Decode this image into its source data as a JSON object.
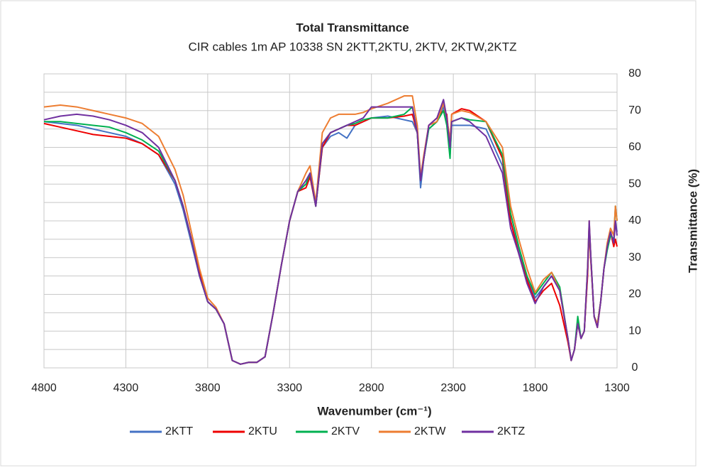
{
  "chart_data": {
    "type": "line",
    "title": "Total Transmittance",
    "subtitle": "CIR cables 1m AP 10338  SN 2KTT,2KTU, 2KTV, 2KTW,2KTZ",
    "xlabel": "Wavenumber  (cm⁻¹)",
    "ylabel": "Transmittance (%)",
    "x": [
      4800,
      4700,
      4600,
      4500,
      4400,
      4300,
      4200,
      4100,
      4000,
      3950,
      3900,
      3850,
      3800,
      3750,
      3700,
      3650,
      3600,
      3550,
      3500,
      3450,
      3400,
      3350,
      3300,
      3250,
      3200,
      3175,
      3140,
      3100,
      3050,
      3000,
      2950,
      2900,
      2850,
      2800,
      2700,
      2600,
      2550,
      2520,
      2500,
      2480,
      2450,
      2400,
      2360,
      2340,
      2320,
      2310,
      2250,
      2200,
      2100,
      2000,
      1950,
      1900,
      1850,
      1800,
      1750,
      1700,
      1650,
      1600,
      1580,
      1560,
      1540,
      1520,
      1500,
      1480,
      1470,
      1460,
      1440,
      1420,
      1400,
      1380,
      1360,
      1340,
      1320,
      1310,
      1300
    ],
    "series": [
      {
        "name": "2KTT",
        "color": "#4472c4",
        "values": [
          67,
          66.5,
          66,
          65,
          64,
          63,
          61,
          58,
          50,
          43,
          34,
          25,
          18,
          16,
          12,
          2,
          1,
          1.5,
          1.5,
          3,
          15,
          28,
          40,
          48,
          50,
          52,
          44,
          60,
          63,
          64,
          62.5,
          66,
          67,
          68,
          68.5,
          67.5,
          67,
          64,
          49,
          57,
          65,
          67,
          71,
          67,
          58,
          66,
          66,
          66,
          65,
          55,
          40,
          32,
          25,
          19,
          22,
          25,
          21,
          8,
          2,
          5,
          13,
          8,
          10,
          26,
          39,
          30,
          14,
          12,
          18,
          27,
          33,
          37,
          34,
          40,
          37
        ]
      },
      {
        "name": "2KTU",
        "color": "#ee0000",
        "values": [
          66.5,
          65.5,
          64.5,
          63.5,
          63,
          62.5,
          61,
          58,
          51,
          44,
          35,
          26,
          18,
          16,
          12,
          2,
          1,
          1.5,
          1.5,
          3,
          15,
          28,
          40,
          48,
          49,
          52,
          44,
          60,
          64,
          65,
          66,
          66,
          67,
          68,
          68,
          68.5,
          69,
          64,
          51,
          57,
          66,
          68,
          70,
          69,
          60,
          69,
          70.5,
          70,
          67,
          57,
          40,
          31,
          24,
          18,
          21,
          23,
          17,
          7,
          2,
          5,
          12,
          8,
          10,
          25,
          38,
          29,
          14,
          11,
          18,
          27,
          33,
          37,
          33,
          35,
          33
        ]
      },
      {
        "name": "2KTV",
        "color": "#00b050",
        "values": [
          67,
          67,
          66.5,
          66,
          65.5,
          64,
          62,
          59,
          51,
          44,
          35,
          25,
          18,
          16,
          12,
          2,
          1,
          1.5,
          1.5,
          3,
          15,
          28,
          40,
          48,
          50,
          53,
          44,
          61,
          64,
          65,
          66,
          66.5,
          67.5,
          68,
          68,
          69,
          71,
          64,
          51,
          57,
          65,
          67,
          70,
          66,
          57,
          67,
          68,
          67.5,
          67,
          58,
          42,
          33,
          25,
          20,
          23,
          26,
          22,
          8,
          2,
          5,
          14,
          8,
          10,
          27,
          39,
          30,
          14,
          12,
          18,
          27,
          32,
          36,
          35,
          44,
          40
        ]
      },
      {
        "name": "2KTW",
        "color": "#ed7d31",
        "values": [
          71,
          71.5,
          71,
          70,
          69,
          68,
          66.5,
          63,
          54,
          47,
          37,
          27,
          19,
          16.5,
          12,
          2,
          1,
          1.5,
          1.5,
          3,
          15,
          28,
          40,
          48,
          53,
          55,
          45,
          64,
          68,
          69,
          69,
          69,
          69.5,
          70.5,
          72,
          74,
          74,
          66,
          52,
          58,
          66,
          67,
          72,
          68,
          62,
          69,
          70,
          69.5,
          67,
          60,
          44,
          35,
          27,
          20.5,
          24,
          26,
          21,
          8,
          2,
          5,
          12,
          8,
          10,
          27,
          40,
          30,
          14,
          12,
          18,
          27,
          34,
          38,
          36,
          44,
          40
        ]
      },
      {
        "name": "2KTZ",
        "color": "#7030a0",
        "values": [
          67.5,
          68.5,
          69,
          68.5,
          67.5,
          66,
          64,
          60,
          51,
          44,
          35,
          25,
          18,
          16,
          12,
          2,
          1,
          1.5,
          1.5,
          3,
          15,
          28,
          40,
          48,
          51,
          53,
          44,
          61,
          64,
          65,
          66,
          67,
          68,
          71,
          71,
          71,
          71,
          64,
          51,
          57,
          66,
          68,
          73,
          68,
          60,
          67,
          68,
          67,
          63,
          53,
          38,
          31,
          23,
          17.5,
          22,
          25,
          21,
          8,
          2,
          5,
          12,
          8,
          10,
          27,
          40,
          30,
          14,
          11,
          18,
          27,
          33,
          37,
          34,
          40,
          36
        ]
      }
    ],
    "xlim": [
      4800,
      1300
    ],
    "xticks": [
      4800,
      4300,
      3800,
      3300,
      2800,
      2300,
      1800,
      1300
    ],
    "ylim": [
      0,
      80
    ],
    "yticks": [
      0,
      10,
      20,
      30,
      40,
      50,
      60,
      70,
      80
    ],
    "ygrid": [
      5,
      15,
      25,
      35,
      45,
      55,
      65,
      75
    ],
    "legend": "bottom"
  }
}
